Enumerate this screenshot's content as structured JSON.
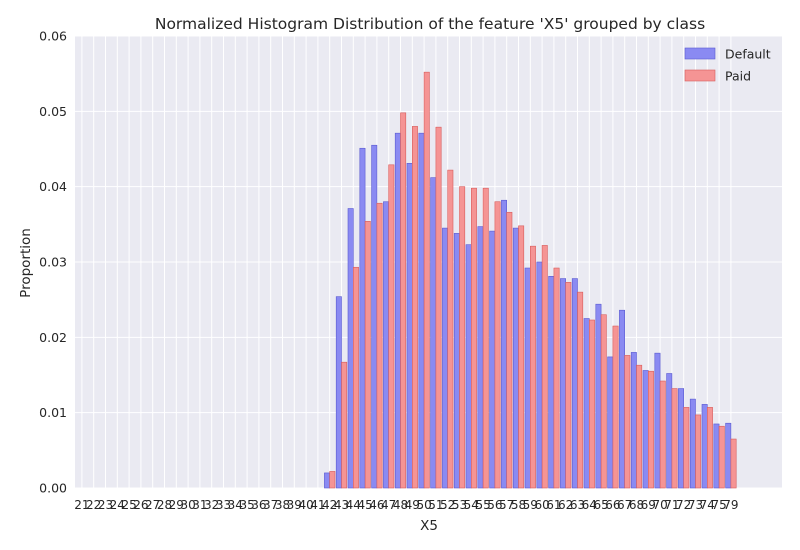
{
  "colors": {
    "plot_background": "#EAEAF2",
    "grid": "#FFFFFF",
    "default_fill": "#8A8AF2",
    "default_edge": "#5A5AD0",
    "paid_fill": "#F59494",
    "paid_edge": "#D85C5C"
  },
  "chart_data": {
    "type": "bar",
    "title": "Normalized Histogram Distribution of the feature 'X5' grouped by class",
    "xlabel": "X5",
    "ylabel": "Proportion",
    "ylim": [
      0,
      0.06
    ],
    "yticks": [
      "0.00",
      "0.01",
      "0.02",
      "0.03",
      "0.04",
      "0.05",
      "0.06"
    ],
    "grid": true,
    "legend_position": "top-right",
    "categories": [
      "21",
      "22",
      "23",
      "24",
      "25",
      "26",
      "27",
      "28",
      "29",
      "30",
      "31",
      "32",
      "33",
      "34",
      "35",
      "36",
      "37",
      "38",
      "39",
      "40",
      "41",
      "42",
      "43",
      "44",
      "45",
      "46",
      "47",
      "48",
      "49",
      "50",
      "51",
      "52",
      "53",
      "54",
      "55",
      "56",
      "57",
      "58",
      "59",
      "60",
      "61",
      "62",
      "63",
      "64",
      "65",
      "66",
      "67",
      "68",
      "69",
      "70",
      "71",
      "72",
      "73",
      "74",
      "75",
      "79"
    ],
    "series": [
      {
        "name": "Default",
        "values": [
          0,
          0,
          0,
          0,
          0,
          0,
          0,
          0,
          0,
          0,
          0,
          0,
          0,
          0,
          0,
          0,
          0,
          0,
          0,
          0,
          0,
          0.002,
          0.0254,
          0.0371,
          0.0451,
          0.0455,
          0.038,
          0.0471,
          0.0431,
          0.0471,
          0.0412,
          0.0345,
          0.0338,
          0.0323,
          0.0347,
          0.0341,
          0.0382,
          0.0345,
          0.0292,
          0.03,
          0.0281,
          0.0278,
          0.0278,
          0.0225,
          0.0244,
          0.0174,
          0.0236,
          0.018,
          0.0156,
          0.0179,
          0.0152,
          0.0132,
          0.0118,
          0.0111,
          0.0085,
          0.0086
        ]
      },
      {
        "name": "Paid",
        "values": [
          0,
          0,
          0,
          0,
          0,
          0,
          0,
          0,
          0,
          0,
          0,
          0,
          0,
          0,
          0,
          0,
          0,
          0,
          0,
          0,
          0,
          0.0022,
          0.0167,
          0.0293,
          0.0354,
          0.0378,
          0.0429,
          0.0498,
          0.048,
          0.0552,
          0.0479,
          0.0422,
          0.04,
          0.0398,
          0.0398,
          0.038,
          0.0366,
          0.0348,
          0.0321,
          0.0322,
          0.0292,
          0.0273,
          0.026,
          0.0223,
          0.023,
          0.0215,
          0.0176,
          0.0163,
          0.0155,
          0.0142,
          0.0132,
          0.0107,
          0.0097,
          0.0107,
          0.0082,
          0.0065
        ]
      }
    ]
  }
}
